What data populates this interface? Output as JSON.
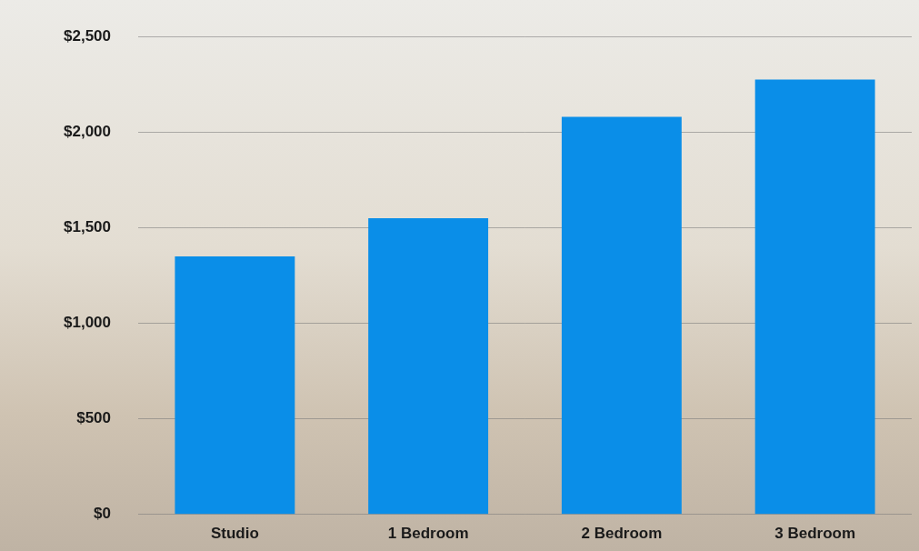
{
  "chart_data": {
    "type": "bar",
    "categories": [
      "Studio",
      "1 Bedroom",
      "2 Bedroom",
      "3 Bedroom"
    ],
    "values": [
      1350,
      1550,
      2080,
      2275
    ],
    "color": "#0a8ee8",
    "ylim": [
      0,
      2500
    ],
    "yticks": [
      {
        "value": 0,
        "label": "$0"
      },
      {
        "value": 500,
        "label": "$500"
      },
      {
        "value": 1000,
        "label": "$1,000"
      },
      {
        "value": 1500,
        "label": "$1,500"
      },
      {
        "value": 2000,
        "label": "$2,000"
      },
      {
        "value": 2500,
        "label": "$2,500"
      }
    ],
    "grid": true
  }
}
